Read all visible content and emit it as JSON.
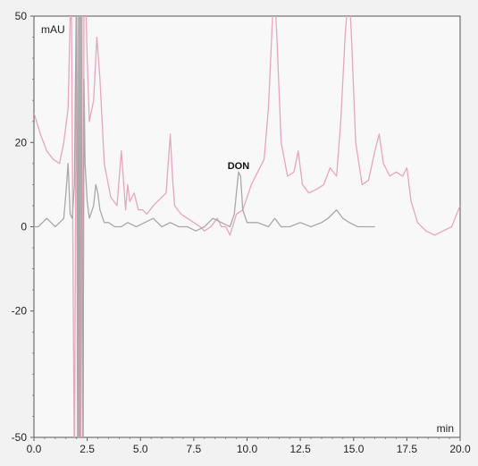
{
  "chart_data": {
    "type": "line",
    "ylabel": "mAU",
    "xlabel": "min",
    "xlim": [
      0.0,
      20.0
    ],
    "ylim": [
      -50,
      50
    ],
    "x_ticks": [
      "0.0",
      "2.5",
      "5.0",
      "7.5",
      "10.0",
      "12.5",
      "15.0",
      "17.5",
      "20.0"
    ],
    "y_ticks": [
      "50",
      "20",
      "0",
      "-20",
      "-50"
    ],
    "y_tick_values": [
      50,
      20,
      0,
      -20,
      -50
    ],
    "annotations": [
      {
        "text": "DON",
        "x": 9.6,
        "y": 12
      }
    ],
    "grid": false,
    "series": [
      {
        "color": "#e8a6bb",
        "x": [
          0.0,
          0.3,
          0.6,
          0.9,
          1.2,
          1.4,
          1.6,
          1.75,
          1.9,
          2.0,
          2.1,
          2.15,
          2.2,
          2.25,
          2.3,
          2.35,
          2.4,
          2.5,
          2.6,
          2.8,
          2.95,
          3.1,
          3.3,
          3.6,
          3.9,
          4.1,
          4.3,
          4.4,
          4.5,
          4.7,
          4.9,
          5.1,
          5.3,
          5.6,
          5.8,
          6.0,
          6.2,
          6.4,
          6.5,
          6.6,
          6.9,
          7.2,
          7.5,
          7.8,
          8.0,
          8.3,
          8.6,
          8.8,
          9.0,
          9.2,
          9.5,
          9.8,
          10.2,
          10.5,
          10.8,
          11.0,
          11.2,
          11.3,
          11.4,
          11.6,
          11.9,
          12.2,
          12.4,
          12.6,
          12.9,
          13.3,
          13.6,
          13.9,
          14.2,
          14.4,
          14.6,
          14.7,
          14.8,
          14.9,
          15.1,
          15.4,
          15.7,
          16.0,
          16.2,
          16.4,
          16.7,
          17.0,
          17.3,
          17.5,
          17.7,
          18.0,
          18.4,
          18.8,
          19.2,
          19.6,
          20.0
        ],
        "values": [
          27,
          22,
          18,
          16,
          15,
          20,
          28,
          60,
          -60,
          60,
          -60,
          60,
          -60,
          60,
          -60,
          60,
          60,
          40,
          25,
          30,
          45,
          35,
          15,
          7,
          5,
          18,
          4,
          10,
          6,
          8,
          4,
          4,
          3,
          5,
          6,
          7,
          8,
          22,
          12,
          5,
          3,
          2,
          1,
          0,
          -1,
          0,
          2,
          0,
          0,
          -2,
          3,
          4,
          10,
          13,
          16,
          28,
          50,
          55,
          45,
          20,
          12,
          13,
          18,
          10,
          8,
          9,
          10,
          14,
          12,
          25,
          45,
          52,
          55,
          45,
          20,
          10,
          11,
          18,
          22,
          15,
          12,
          13,
          12,
          14,
          6,
          1,
          -1,
          -2,
          -1,
          0,
          5
        ]
      },
      {
        "color": "#a8a8a8",
        "x": [
          0.0,
          0.2,
          0.4,
          0.6,
          0.8,
          1.0,
          1.2,
          1.4,
          1.5,
          1.6,
          1.7,
          1.8,
          1.9,
          2.0,
          2.05,
          2.1,
          2.15,
          2.2,
          2.3,
          2.35,
          2.4,
          2.5,
          2.6,
          2.8,
          2.9,
          3.0,
          3.1,
          3.3,
          3.5,
          3.8,
          4.1,
          4.4,
          4.8,
          5.2,
          5.6,
          6.0,
          6.4,
          6.8,
          7.2,
          7.6,
          8.0,
          8.4,
          8.8,
          9.2,
          9.4,
          9.5,
          9.6,
          9.7,
          9.8,
          10.0,
          10.5,
          11.0,
          11.3,
          11.6,
          12.0,
          12.5,
          13.0,
          13.5,
          13.8,
          14.2,
          14.5,
          14.8,
          15.2,
          15.6,
          16.0
        ],
        "values": [
          0,
          0,
          1,
          2,
          1,
          0,
          1,
          2,
          8,
          15,
          3,
          2,
          10,
          60,
          -60,
          60,
          -60,
          60,
          -60,
          35,
          15,
          6,
          2,
          5,
          10,
          8,
          4,
          1,
          1,
          0,
          0,
          1,
          0,
          1,
          2,
          0,
          1,
          0,
          0,
          -1,
          0,
          2,
          1,
          0,
          3,
          8,
          13,
          12,
          4,
          1,
          1,
          0,
          2,
          0,
          0,
          1,
          0,
          1,
          2,
          4,
          2,
          1,
          0,
          0,
          0
        ]
      }
    ]
  }
}
